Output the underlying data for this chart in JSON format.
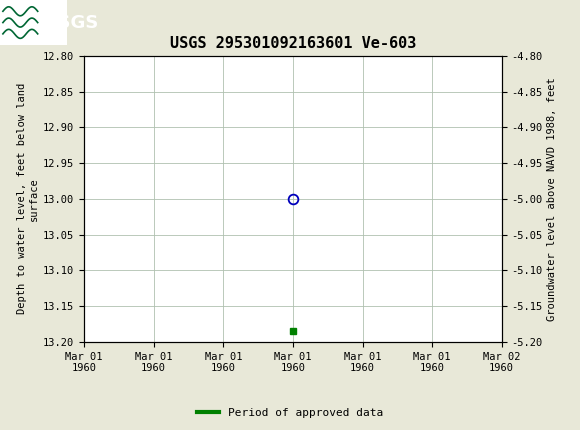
{
  "title": "USGS 295301092163601 Ve-603",
  "ylabel_left": "Depth to water level, feet below land\nsurface",
  "ylabel_right": "Groundwater level above NAVD 1988, feet",
  "ylim_left": [
    12.8,
    13.2
  ],
  "ylim_right": [
    -4.8,
    -5.2
  ],
  "yticks_left": [
    12.8,
    12.85,
    12.9,
    12.95,
    13.0,
    13.05,
    13.1,
    13.15,
    13.2
  ],
  "ytick_labels_left": [
    "12.80",
    "12.85",
    "12.90",
    "12.95",
    "13.00",
    "13.05",
    "13.10",
    "13.15",
    "13.20"
  ],
  "yticks_right": [
    -4.8,
    -4.85,
    -4.9,
    -4.95,
    -5.0,
    -5.05,
    -5.1,
    -5.15,
    -5.2
  ],
  "ytick_labels_right": [
    "-4.80",
    "-4.85",
    "-4.90",
    "-4.95",
    "-5.00",
    "-5.05",
    "-5.10",
    "-5.15",
    "-5.20"
  ],
  "xtick_positions": [
    0,
    1,
    2,
    3,
    4,
    5,
    6
  ],
  "xtick_labels": [
    "Mar 01\n1960",
    "Mar 01\n1960",
    "Mar 01\n1960",
    "Mar 01\n1960",
    "Mar 01\n1960",
    "Mar 01\n1960",
    "Mar 02\n1960"
  ],
  "xlim": [
    0,
    6
  ],
  "data_point_x": 3,
  "data_point_y": 13.0,
  "green_point_x": 3,
  "green_point_y": 13.185,
  "blue_circle_color": "#0000bb",
  "green_color": "#008000",
  "header_color": "#006633",
  "header_text_color": "#ffffff",
  "bg_color": "#e8e8d8",
  "plot_bg_color": "#ffffff",
  "grid_color": "#b0c0b0",
  "legend_label": "Period of approved data",
  "font_family": "monospace",
  "title_fontsize": 11,
  "axis_label_fontsize": 7.5,
  "tick_fontsize": 7.5,
  "legend_fontsize": 8
}
